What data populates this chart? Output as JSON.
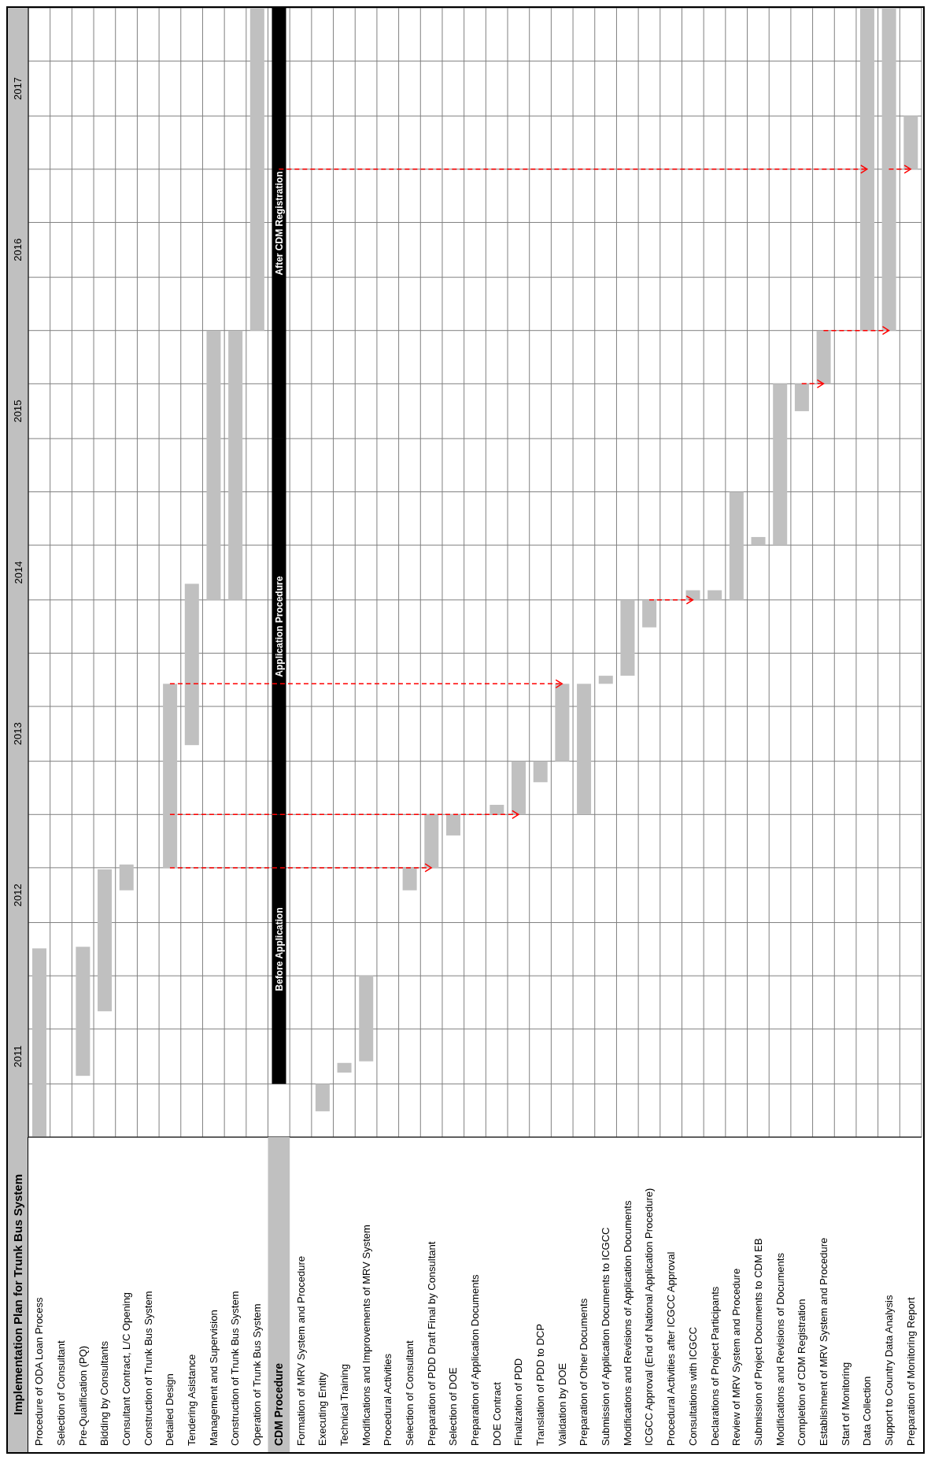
{
  "chart_data": {
    "type": "bar",
    "title": "Implementation Plan for Trunk Bus System",
    "categories": [
      "Procedure of ODA Loan Process",
      "Selection of Consultant",
      "Pre-Qualification (PQ)",
      "Bidding by Consultants",
      "Consultant Contract, L/C Opening",
      "Construction of Trunk Bus System",
      "Detailed Design",
      "Tendering Asistance",
      "Management and Supervision",
      "Construction of Trunk Bus System",
      "Operation of Trunk Bus System",
      "CDM Procedure",
      "Formation of MRV System and Procedure",
      "Executing Entity",
      "Technical Training",
      "Modifications and Improvements of MRV System",
      "Procedural Activities",
      "Selection of Consultant",
      "Preparation of PDD Draft Final by Consultant",
      "Selection of DOE",
      "Preparation of Application Documents",
      "DOE Contract",
      "Finalization of PDD",
      "Translation of PDD to DCP",
      "Validation by DOE",
      "Preparation of Other Documents",
      "Submission of Application Documents to ICGCC",
      "Modifications and Revisions of Application Documents",
      "ICGCC Approval (End of National Application Procedure)",
      "Procedural Activities after ICGCC Approval",
      "Consultations with ICGCC",
      "Declarations of Project Participants",
      "Review of MRV System and Procedure",
      "Submission of Project Documents to CDM EB",
      "Modifications and Revisions of Documents",
      "Completion of CDM Registration",
      "Establishment of MRV System and Procedure",
      "Start of Monitoring",
      "Data Collection",
      "Support to Country Data Analysis",
      "Preparation of Monitoring Report"
    ],
    "series": [
      {
        "color": "#c0c0c0",
        "base": [
          2011.0,
          null,
          2011.38,
          2011.78,
          2012.53,
          null,
          2012.67,
          2013.43,
          2014.33,
          2014.33,
          2016.0,
          null,
          null,
          2011.16,
          2011.4,
          2011.47,
          null,
          2012.53,
          2012.67,
          2012.87,
          null,
          2013.0,
          2013.0,
          2013.2,
          2013.33,
          2013.0,
          2013.81,
          2013.86,
          2014.16,
          null,
          2014.33,
          2014.33,
          2014.33,
          2014.67,
          2014.67,
          2015.5,
          2015.67,
          null,
          2016.0,
          2016.0,
          2017.0
        ],
        "values": [
          1.17,
          null,
          0.8,
          0.88,
          0.16,
          null,
          1.14,
          1.0,
          1.67,
          1.67,
          2.0,
          null,
          null,
          0.17,
          0.06,
          0.53,
          null,
          0.14,
          0.33,
          0.13,
          null,
          0.06,
          0.33,
          0.13,
          0.48,
          0.81,
          0.05,
          0.47,
          0.17,
          null,
          0.06,
          0.06,
          0.67,
          0.05,
          1.0,
          0.17,
          0.33,
          null,
          2.0,
          2.0,
          0.33
        ]
      },
      {
        "color": "#000000",
        "base": [
          null,
          null,
          null,
          null,
          null,
          null,
          null,
          null,
          null,
          null,
          null,
          2011.33,
          null,
          null,
          null,
          null,
          null,
          null,
          null,
          null,
          null,
          null,
          null,
          null,
          null,
          null,
          null,
          null,
          null,
          null,
          null,
          null,
          null,
          null,
          null,
          null,
          null,
          null,
          null,
          null,
          null
        ],
        "values": [
          null,
          null,
          null,
          null,
          null,
          null,
          null,
          null,
          null,
          null,
          null,
          1.67,
          null,
          null,
          null,
          null,
          null,
          null,
          null,
          null,
          null,
          null,
          null,
          null,
          null,
          null,
          null,
          null,
          null,
          null,
          null,
          null,
          null,
          null,
          null,
          null,
          null,
          null,
          null,
          null,
          null
        ],
        "value_labels": [
          null,
          null,
          null,
          null,
          null,
          null,
          null,
          null,
          null,
          null,
          null,
          "Before Application",
          null,
          null,
          null,
          null,
          null,
          null,
          null,
          null,
          null,
          null,
          null,
          null,
          null,
          null,
          null,
          null,
          null,
          null,
          null,
          null,
          null,
          null,
          null,
          null,
          null,
          null,
          null,
          null,
          null
        ]
      },
      {
        "color": "#000000",
        "base": [
          null,
          null,
          null,
          null,
          null,
          null,
          null,
          null,
          null,
          null,
          null,
          2013.0,
          null,
          null,
          null,
          null,
          null,
          null,
          null,
          null,
          null,
          null,
          null,
          null,
          null,
          null,
          null,
          null,
          null,
          null,
          null,
          null,
          null,
          null,
          null,
          null,
          null,
          null,
          null,
          null,
          null
        ],
        "values": [
          null,
          null,
          null,
          null,
          null,
          null,
          null,
          null,
          null,
          null,
          null,
          2.33,
          null,
          null,
          null,
          null,
          null,
          null,
          null,
          null,
          null,
          null,
          null,
          null,
          null,
          null,
          null,
          null,
          null,
          null,
          null,
          null,
          null,
          null,
          null,
          null,
          null,
          null,
          null,
          null,
          null
        ],
        "value_labels": [
          null,
          null,
          null,
          null,
          null,
          null,
          null,
          null,
          null,
          null,
          null,
          "Application Procedure",
          null,
          null,
          null,
          null,
          null,
          null,
          null,
          null,
          null,
          null,
          null,
          null,
          null,
          null,
          null,
          null,
          null,
          null,
          null,
          null,
          null,
          null,
          null,
          null,
          null,
          null,
          null,
          null,
          null
        ]
      },
      {
        "color": "#000000",
        "base": [
          null,
          null,
          null,
          null,
          null,
          null,
          null,
          null,
          null,
          null,
          null,
          2015.33,
          null,
          null,
          null,
          null,
          null,
          null,
          null,
          null,
          null,
          null,
          null,
          null,
          null,
          null,
          null,
          null,
          null,
          null,
          null,
          null,
          null,
          null,
          null,
          null,
          null,
          null,
          null,
          null,
          null
        ],
        "values": [
          null,
          null,
          null,
          null,
          null,
          null,
          null,
          null,
          null,
          null,
          null,
          2.67,
          null,
          null,
          null,
          null,
          null,
          null,
          null,
          null,
          null,
          null,
          null,
          null,
          null,
          null,
          null,
          null,
          null,
          null,
          null,
          null,
          null,
          null,
          null,
          null,
          null,
          null,
          null,
          null,
          null
        ],
        "value_labels": [
          null,
          null,
          null,
          null,
          null,
          null,
          null,
          null,
          null,
          null,
          null,
          "After CDM Registration",
          null,
          null,
          null,
          null,
          null,
          null,
          null,
          null,
          null,
          null,
          null,
          null,
          null,
          null,
          null,
          null,
          null,
          null,
          null,
          null,
          null,
          null,
          null,
          null,
          null,
          null,
          null,
          null,
          null
        ]
      },
      {
        "type": "line",
        "color": "#ff0000",
        "line_style": "dashed",
        "values": [
          null,
          null,
          null,
          null,
          null,
          null,
          2013.81,
          null,
          null,
          null,
          null,
          null,
          null,
          null,
          null,
          null,
          null,
          null,
          null,
          null,
          null,
          null,
          null,
          null,
          2013.81,
          null,
          null,
          null,
          null,
          null,
          null,
          null,
          null,
          null,
          null,
          null,
          null,
          null,
          null,
          null,
          null
        ]
      },
      {
        "type": "line",
        "color": "#ff0000",
        "line_style": "dashed",
        "values": [
          null,
          null,
          null,
          null,
          null,
          null,
          2013.0,
          null,
          null,
          null,
          null,
          null,
          null,
          null,
          null,
          null,
          null,
          null,
          null,
          null,
          null,
          null,
          2013.0,
          null,
          null,
          null,
          null,
          null,
          null,
          null,
          null,
          null,
          null,
          null,
          null,
          null,
          null,
          null,
          null,
          null,
          null
        ]
      },
      {
        "type": "line",
        "color": "#ff0000",
        "line_style": "dashed",
        "values": [
          null,
          null,
          null,
          null,
          null,
          null,
          2012.67,
          null,
          null,
          null,
          null,
          null,
          null,
          null,
          null,
          null,
          null,
          null,
          2012.67,
          null,
          null,
          null,
          null,
          null,
          null,
          null,
          null,
          null,
          null,
          null,
          null,
          null,
          null,
          null,
          null,
          null,
          null,
          null,
          null,
          null,
          null
        ]
      },
      {
        "type": "line",
        "color": "#ff0000",
        "line_style": "dashed",
        "values": [
          null,
          null,
          null,
          null,
          null,
          null,
          null,
          null,
          null,
          null,
          null,
          null,
          null,
          null,
          null,
          null,
          null,
          null,
          null,
          null,
          null,
          null,
          null,
          null,
          null,
          null,
          null,
          null,
          2014.33,
          null,
          2014.33,
          null,
          null,
          null,
          null,
          null,
          null,
          null,
          null,
          null,
          null
        ]
      },
      {
        "type": "line",
        "color": "#ff0000",
        "line_style": "dashed",
        "values": [
          null,
          null,
          null,
          null,
          null,
          null,
          null,
          null,
          null,
          null,
          null,
          null,
          null,
          null,
          null,
          null,
          null,
          null,
          null,
          null,
          null,
          null,
          null,
          null,
          null,
          null,
          null,
          null,
          null,
          null,
          null,
          null,
          null,
          null,
          null,
          2015.67,
          2015.67,
          null,
          null,
          null,
          null
        ]
      },
      {
        "type": "line",
        "color": "#ff0000",
        "line_style": "dashed",
        "values": [
          null,
          null,
          null,
          null,
          null,
          null,
          null,
          null,
          null,
          null,
          null,
          null,
          null,
          null,
          null,
          null,
          null,
          null,
          null,
          null,
          null,
          null,
          null,
          null,
          null,
          null,
          null,
          null,
          null,
          null,
          null,
          null,
          null,
          null,
          null,
          null,
          2016.0,
          null,
          null,
          2016.0,
          null
        ]
      },
      {
        "type": "line",
        "color": "#ff0000",
        "line_style": "dashed",
        "values": [
          null,
          null,
          null,
          null,
          null,
          null,
          null,
          null,
          null,
          null,
          null,
          2017.0,
          null,
          null,
          null,
          null,
          null,
          null,
          null,
          null,
          null,
          null,
          null,
          null,
          null,
          null,
          null,
          null,
          null,
          null,
          null,
          null,
          null,
          null,
          null,
          null,
          null,
          null,
          2017.0,
          null,
          null
        ]
      },
      {
        "type": "line",
        "color": "#ff0000",
        "line_style": "dashed",
        "values": [
          null,
          null,
          null,
          null,
          null,
          null,
          null,
          null,
          null,
          null,
          null,
          null,
          null,
          null,
          null,
          null,
          null,
          null,
          null,
          null,
          null,
          null,
          null,
          null,
          null,
          null,
          null,
          null,
          null,
          null,
          null,
          null,
          null,
          null,
          null,
          null,
          null,
          null,
          null,
          2017.0,
          2017.0
        ]
      }
    ],
    "ylim": [
      2011,
      2018
    ],
    "yticks": [
      {
        "value": 2011,
        "label": null
      },
      {
        "value": 2011.33,
        "label": null
      },
      {
        "value": 2011.5,
        "label": "2011"
      },
      {
        "value": 2011.67,
        "label": null
      },
      {
        "value": 2012,
        "label": null
      },
      {
        "value": 2012.33,
        "label": null
      },
      {
        "value": 2012.5,
        "label": "2012"
      },
      {
        "value": 2012.67,
        "label": null
      },
      {
        "value": 2013,
        "label": null
      },
      {
        "value": 2013.33,
        "label": null
      },
      {
        "value": 2013.5,
        "label": "2013"
      },
      {
        "value": 2013.67,
        "label": null
      },
      {
        "value": 2014,
        "label": null
      },
      {
        "value": 2014.33,
        "label": null
      },
      {
        "value": 2014.5,
        "label": "2014"
      },
      {
        "value": 2014.67,
        "label": null
      },
      {
        "value": 2015,
        "label": null
      },
      {
        "value": 2015.33,
        "label": null
      },
      {
        "value": 2015.5,
        "label": "2015"
      },
      {
        "value": 2015.67,
        "label": null
      },
      {
        "value": 2016,
        "label": null
      },
      {
        "value": 2016.33,
        "label": null
      },
      {
        "value": 2016.5,
        "label": "2016"
      },
      {
        "value": 2016.67,
        "label": null
      },
      {
        "value": 2017,
        "label": null
      },
      {
        "value": 2017.33,
        "label": null
      },
      {
        "value": 2017.5,
        "label": "2017"
      },
      {
        "value": 2017.67,
        "label": null
      },
      {
        "value": 2018,
        "label": null
      }
    ],
    "grid": true
  }
}
